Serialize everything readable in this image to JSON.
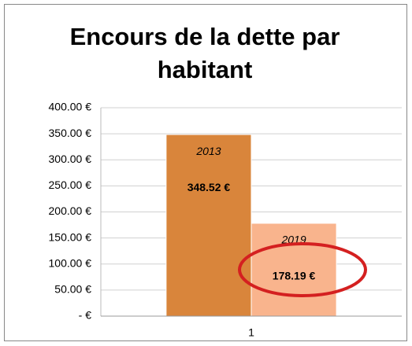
{
  "chart_data": {
    "type": "bar",
    "title": "Encours de la dette par habitant",
    "categories": [
      "1"
    ],
    "series": [
      {
        "name": "2013",
        "color": "#d9853b",
        "values": [
          348.52
        ],
        "value_labels": [
          "348.52 €"
        ]
      },
      {
        "name": "2019",
        "color": "#f9b48d",
        "values": [
          178.19
        ],
        "value_labels": [
          "178.19 €"
        ]
      }
    ],
    "ylim": [
      0,
      400
    ],
    "yticks": [
      {
        "value": 0,
        "label": "-   €"
      },
      {
        "value": 50,
        "label": "50.00 €"
      },
      {
        "value": 100,
        "label": "100.00 €"
      },
      {
        "value": 150,
        "label": "150.00 €"
      },
      {
        "value": 200,
        "label": "200.00 €"
      },
      {
        "value": 250,
        "label": "250.00 €"
      },
      {
        "value": 300,
        "label": "300.00 €"
      },
      {
        "value": 350,
        "label": "350.00 €"
      },
      {
        "value": 400,
        "label": "400.00 €"
      }
    ],
    "grid": true
  }
}
